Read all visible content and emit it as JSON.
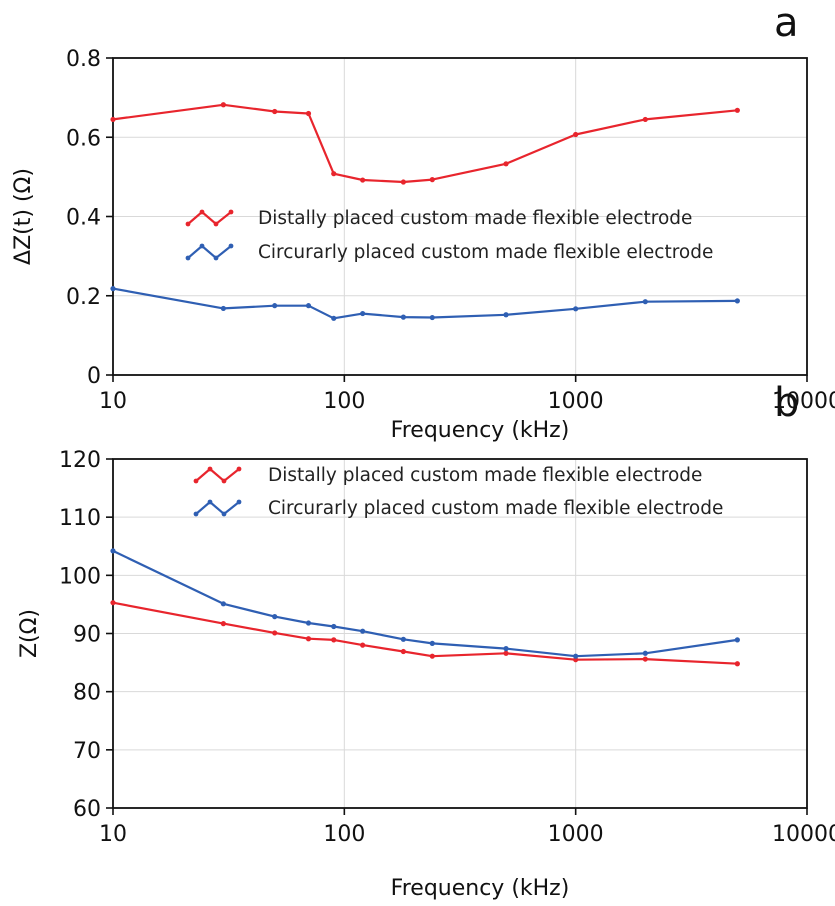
{
  "chart_data": [
    {
      "type": "line",
      "panel_label": "a",
      "xlabel": "Frequency (kHz)",
      "ylabel": "ΔZ(t) (Ω)",
      "x_scale": "log",
      "xlim": [
        10,
        10000
      ],
      "ylim": [
        0,
        0.8
      ],
      "x_ticks": [
        10,
        100,
        1000,
        10000
      ],
      "x_tick_labels": [
        "10",
        "100",
        "1000",
        "10000"
      ],
      "y_ticks": [
        0,
        0.2,
        0.4,
        0.6,
        0.8
      ],
      "y_tick_labels": [
        "0",
        "0.2",
        "0.4",
        "0.6",
        "0.8"
      ],
      "grid": true,
      "legend_position": "center",
      "series": [
        {
          "name": "Distally placed custom made flexible electrode",
          "color": "#e8252d",
          "x": [
            10,
            30,
            50,
            70,
            90,
            120,
            180,
            240,
            500,
            1000,
            2000,
            5000
          ],
          "y": [
            0.645,
            0.682,
            0.665,
            0.66,
            0.508,
            0.492,
            0.487,
            0.493,
            0.533,
            0.607,
            0.645,
            0.668
          ]
        },
        {
          "name": "Circurarly placed custom made flexible electrode",
          "color": "#2f5fb3",
          "x": [
            10,
            30,
            50,
            70,
            90,
            120,
            180,
            240,
            500,
            1000,
            2000,
            5000
          ],
          "y": [
            0.218,
            0.168,
            0.175,
            0.175,
            0.143,
            0.155,
            0.146,
            0.145,
            0.152,
            0.167,
            0.185,
            0.187
          ]
        }
      ]
    },
    {
      "type": "line",
      "panel_label": "b",
      "xlabel": "Frequency (kHz)",
      "ylabel": "Z(Ω)",
      "x_scale": "log",
      "xlim": [
        10,
        10000
      ],
      "ylim": [
        60,
        120
      ],
      "x_ticks": [
        10,
        100,
        1000,
        10000
      ],
      "x_tick_labels": [
        "10",
        "100",
        "1000",
        "10000"
      ],
      "y_ticks": [
        60,
        70,
        80,
        90,
        100,
        110,
        120
      ],
      "y_tick_labels": [
        "60",
        "70",
        "80",
        "90",
        "100",
        "110",
        "120"
      ],
      "grid": true,
      "legend_position": "top-center",
      "series": [
        {
          "name": "Distally placed custom made flexible electrode",
          "color": "#e8252d",
          "x": [
            10,
            30,
            50,
            70,
            90,
            120,
            180,
            240,
            500,
            1000,
            2000,
            5000
          ],
          "y": [
            95.3,
            91.7,
            90.1,
            89.1,
            88.9,
            88.0,
            86.9,
            86.1,
            86.6,
            85.5,
            85.6,
            84.8
          ]
        },
        {
          "name": "Circurarly placed custom made flexible electrode",
          "color": "#2f5fb3",
          "x": [
            10,
            30,
            50,
            70,
            90,
            120,
            180,
            240,
            500,
            1000,
            2000,
            5000
          ],
          "y": [
            104.2,
            95.1,
            92.9,
            91.8,
            91.2,
            90.4,
            89.0,
            88.3,
            87.4,
            86.1,
            86.6,
            88.9
          ]
        }
      ]
    }
  ]
}
